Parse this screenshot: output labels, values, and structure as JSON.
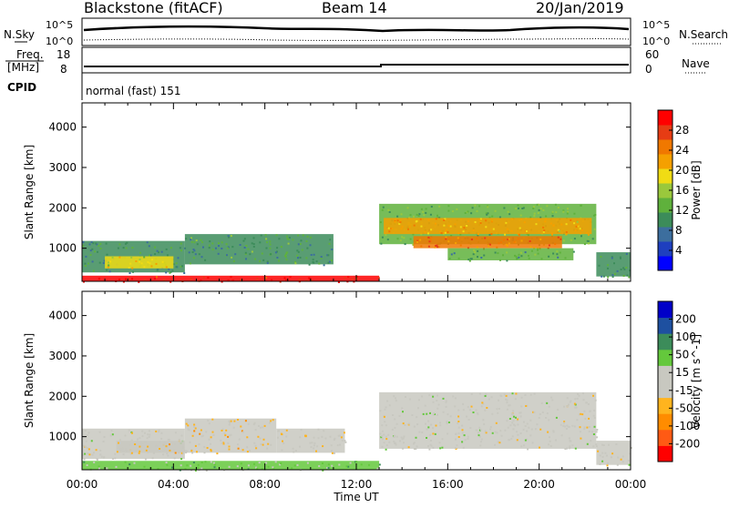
{
  "header": {
    "title": "Blackstone (fitACF)",
    "beam": "Beam 14",
    "date": "20/Jan/2019"
  },
  "status_panel": {
    "nsky_label": "N.Sky",
    "nsky_max": "10^5",
    "nsky_min": "10^0",
    "nsearch_label": "N.Search",
    "nsearch_max": "10^5",
    "nsearch_min": "10^0",
    "freq_label": "Freq.",
    "freq_unit": "[MHz]",
    "freq_max": "18",
    "freq_min": "8",
    "nave_label": "Nave",
    "nave_max": "60",
    "nave_min": "0",
    "cpid_label": "CPID",
    "cpid_value": "normal (fast) 151"
  },
  "x_axis": {
    "label": "Time UT",
    "ticks": [
      "00:00",
      "04:00",
      "08:00",
      "12:00",
      "16:00",
      "20:00",
      "00:00"
    ]
  },
  "colors": {
    "power": [
      "#0000ff",
      "#1e3fbf",
      "#3c6e9e",
      "#3c8c5a",
      "#5fb13c",
      "#9ac83c",
      "#f0dc14",
      "#f5a000",
      "#f07800",
      "#e63c14",
      "#ff0000"
    ],
    "velocity": [
      "#ff0000",
      "#ff5a14",
      "#ff8c00",
      "#ffb41e",
      "#c8c8c0",
      "#c8c8c0",
      "#64c83c",
      "#3c8c5a",
      "#1e50a0",
      "#0000c8"
    ]
  },
  "chart_data": [
    {
      "type": "heatmap",
      "name": "power",
      "ylabel": "Slant Range [km]",
      "xlabel": "",
      "ylim": [
        180,
        4600
      ],
      "yticks": [
        "1000",
        "2000",
        "3000",
        "4000"
      ],
      "colorbar_label": "Power [dB]",
      "colorbar_ticks": [
        "4",
        "8",
        "12",
        "16",
        "20",
        "24",
        "28"
      ],
      "colorbar_range": [
        0,
        32
      ],
      "regions": [
        {
          "t0": 0.0,
          "t1": 13.0,
          "r0": 180,
          "r1": 320,
          "value": 30
        },
        {
          "t0": 0.0,
          "t1": 4.5,
          "r0": 400,
          "r1": 1180,
          "value": 10
        },
        {
          "t0": 4.5,
          "t1": 11.0,
          "r0": 600,
          "r1": 1350,
          "value": 11
        },
        {
          "t0": 1.0,
          "t1": 4.0,
          "r0": 500,
          "r1": 800,
          "value": 18
        },
        {
          "t0": 13.0,
          "t1": 22.5,
          "r0": 1100,
          "r1": 2100,
          "value": 13
        },
        {
          "t0": 13.2,
          "t1": 22.3,
          "r0": 1350,
          "r1": 1750,
          "value": 21
        },
        {
          "t0": 14.5,
          "t1": 21.0,
          "r0": 1000,
          "r1": 1300,
          "value": 25
        },
        {
          "t0": 16.0,
          "t1": 21.5,
          "r0": 700,
          "r1": 1000,
          "value": 12
        },
        {
          "t0": 22.5,
          "t1": 24.0,
          "r0": 300,
          "r1": 900,
          "value": 10
        }
      ]
    },
    {
      "type": "heatmap",
      "name": "velocity",
      "ylabel": "Slant Range [km]",
      "xlabel": "Time UT",
      "ylim": [
        180,
        4600
      ],
      "yticks": [
        "1000",
        "2000",
        "3000",
        "4000"
      ],
      "colorbar_label": "Velocity [m s^-1]",
      "colorbar_ticks": [
        "-200",
        "-100",
        "-50",
        "-15",
        "15",
        "50",
        "100",
        "200"
      ],
      "colorbar_range": [
        -250,
        250
      ],
      "regions": [
        {
          "t0": 0.0,
          "t1": 13.0,
          "r0": 180,
          "r1": 400,
          "value": 60
        },
        {
          "t0": 0.0,
          "t1": 4.5,
          "r0": 450,
          "r1": 1200,
          "value": 0
        },
        {
          "t0": 1.5,
          "t1": 4.5,
          "r0": 600,
          "r1": 900,
          "value": -40
        },
        {
          "t0": 4.5,
          "t1": 8.5,
          "r0": 600,
          "r1": 1450,
          "value": -45
        },
        {
          "t0": 8.5,
          "t1": 11.5,
          "r0": 600,
          "r1": 1200,
          "value": -30
        },
        {
          "t0": 13.0,
          "t1": 22.5,
          "r0": 700,
          "r1": 2100,
          "value": 0
        },
        {
          "t0": 22.5,
          "t1": 24.0,
          "r0": 300,
          "r1": 900,
          "value": 0
        }
      ]
    }
  ]
}
